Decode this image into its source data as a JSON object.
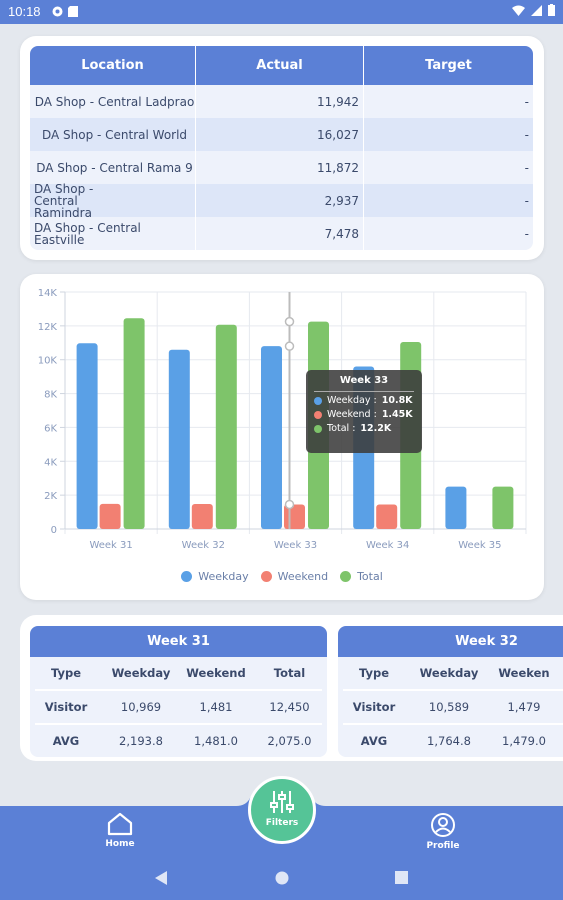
{
  "status_bar": {
    "time": "10:18"
  },
  "locations_table": {
    "headers": [
      "Location",
      "Actual",
      "Target"
    ],
    "rows": [
      {
        "location": "DA Shop - Central Ladprao",
        "actual": "11,942",
        "target": "-"
      },
      {
        "location": "DA Shop - Central World",
        "actual": "16,027",
        "target": "-"
      },
      {
        "location": "DA Shop - Central Rama 9",
        "actual": "11,872",
        "target": "-"
      },
      {
        "location": "DA Shop - Central Ramindra",
        "actual": "2,937",
        "target": "-"
      },
      {
        "location": "DA Shop - Central Eastville",
        "actual": "7,478",
        "target": "-"
      }
    ]
  },
  "chart_data": {
    "type": "bar",
    "categories": [
      "Week 31",
      "Week 32",
      "Week 33",
      "Week 34",
      "Week 35"
    ],
    "series": [
      {
        "name": "Weekday",
        "color": "#5aa0e6",
        "values": [
          10969,
          10589,
          10800,
          9600,
          2500
        ]
      },
      {
        "name": "Weekend",
        "color": "#f28072",
        "values": [
          1481,
          1479,
          1450,
          1450,
          0
        ]
      },
      {
        "name": "Total",
        "color": "#7ec46a",
        "values": [
          12450,
          12068,
          12250,
          11050,
          2500
        ]
      }
    ],
    "y_ticks": [
      "0",
      "2K",
      "4K",
      "6K",
      "8K",
      "10K",
      "12K",
      "14K"
    ],
    "ylim": [
      0,
      14000
    ],
    "grid": true,
    "legend_position": "bottom",
    "tooltip": {
      "title": "Week 33",
      "lines": [
        {
          "label": "Weekday : ",
          "value": "10.8K",
          "color": "#5aa0e6"
        },
        {
          "label": "Weekend : ",
          "value": "1.45K",
          "color": "#f28072"
        },
        {
          "label": "Total : ",
          "value": "12.2K",
          "color": "#7ec46a"
        }
      ]
    }
  },
  "week_tables": [
    {
      "title": "Week 31",
      "headers": [
        "Type",
        "Weekday",
        "Weekend",
        "Total"
      ],
      "rows": [
        [
          "Visitor",
          "10,969",
          "1,481",
          "12,450"
        ],
        [
          "AVG",
          "2,193.8",
          "1,481.0",
          "2,075.0"
        ]
      ]
    },
    {
      "title": "Week 32",
      "headers": [
        "Type",
        "Weekday",
        "Weeken",
        ""
      ],
      "rows": [
        [
          "Visitor",
          "10,589",
          "1,479",
          ""
        ],
        [
          "AVG",
          "1,764.8",
          "1,479.0",
          ""
        ]
      ]
    }
  ],
  "bottom_nav": {
    "home": "Home",
    "filters": "Filters",
    "profile": "Profile"
  },
  "colors": {
    "primary": "#5b80d6",
    "fab": "#55c497"
  }
}
